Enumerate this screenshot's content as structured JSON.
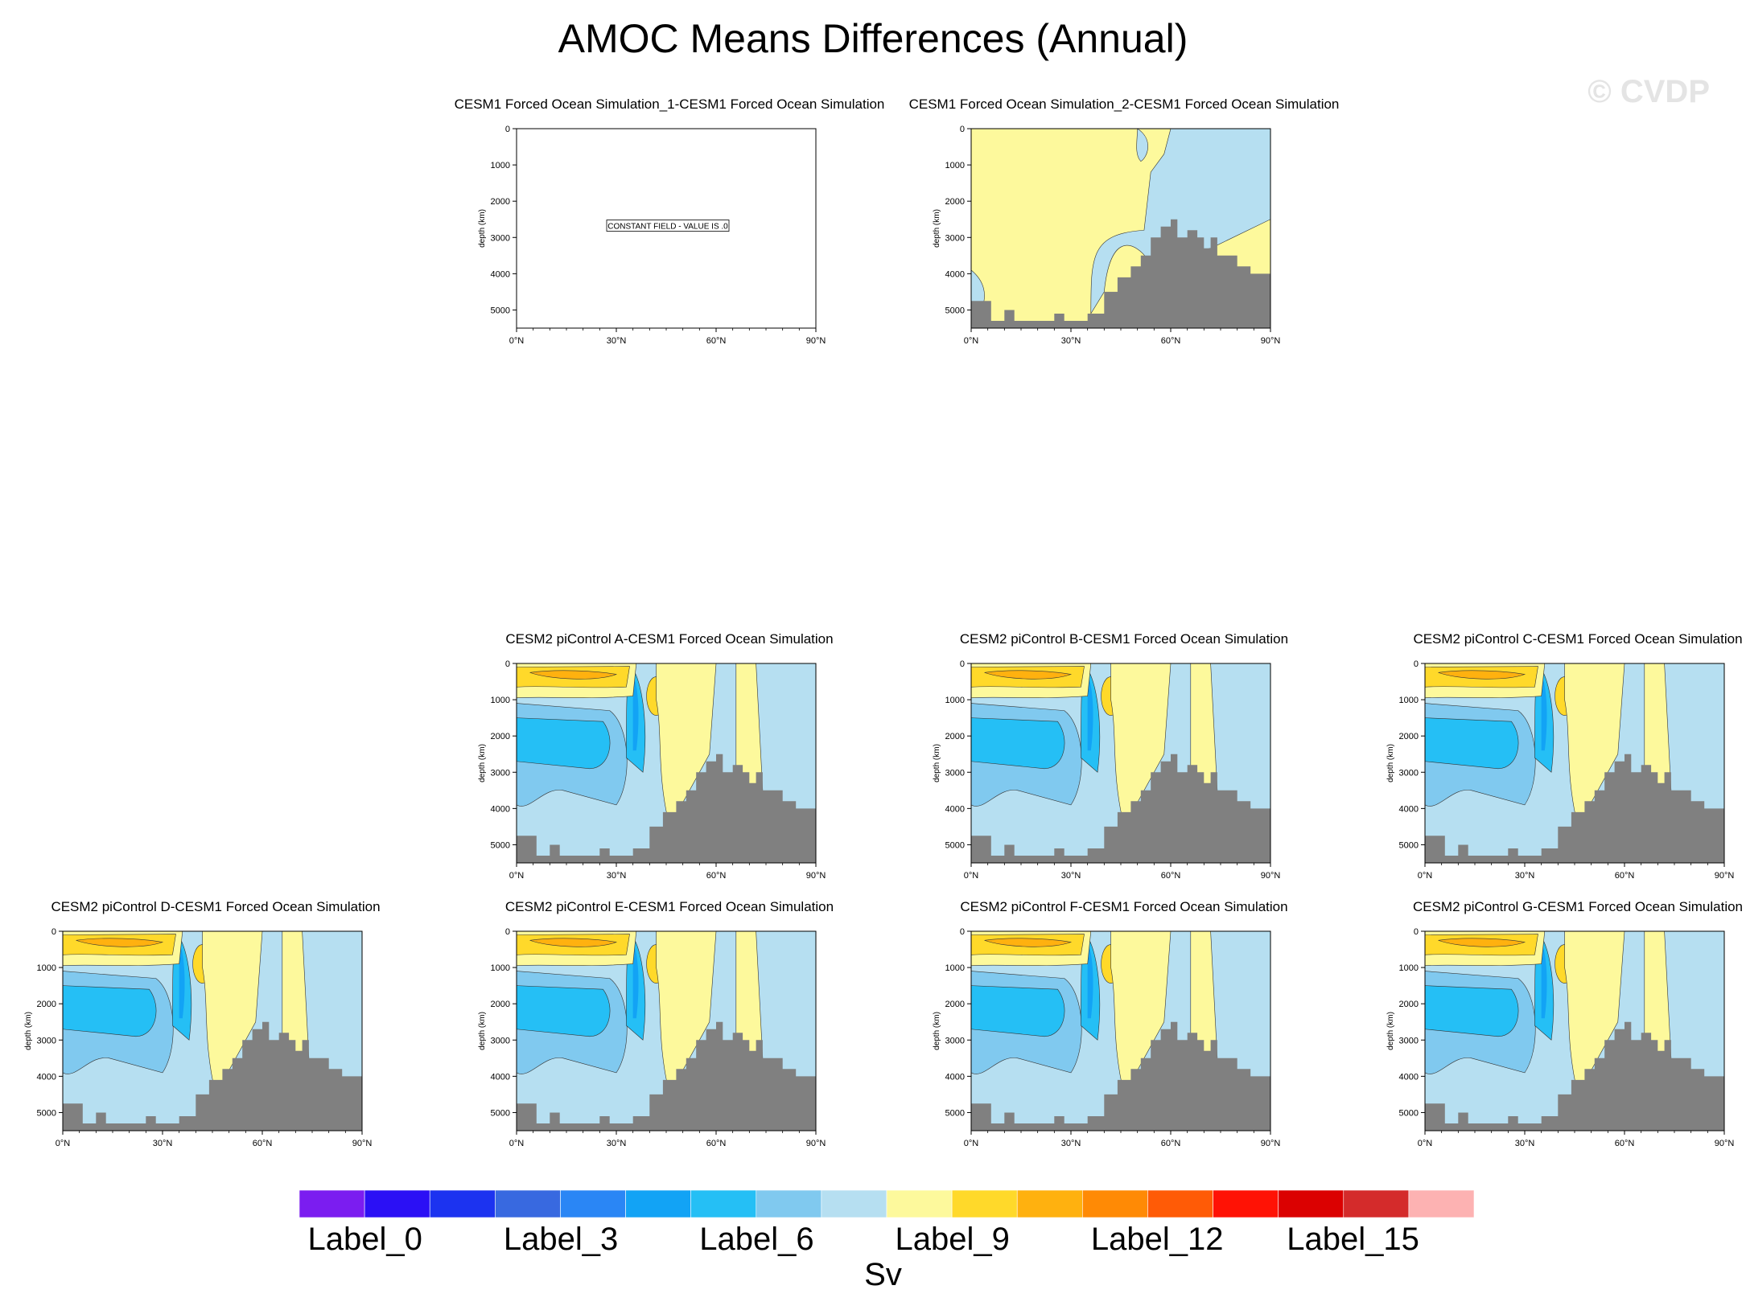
{
  "title": "AMOC Means Differences (Annual)",
  "watermark": "© CVDP",
  "units": "Sv",
  "colors": {
    "levels": [
      "#7b1df0",
      "#2b10f5",
      "#1c33f0",
      "#3869e0",
      "#2a86f5",
      "#12a3f5",
      "#25bff5",
      "#80c9ef",
      "#b6dff1",
      "#fdf99c",
      "#ffd92a",
      "#ffb10f",
      "#ff8a05",
      "#ff5b06",
      "#ff1205",
      "#db0101",
      "#d42b2b",
      "#fdb2b2"
    ],
    "bathymetry": "#808080",
    "frame": "#000000"
  },
  "colorbar": {
    "labels": [
      {
        "text": "Label_0",
        "index": 0
      },
      {
        "text": "Label_3",
        "index": 3
      },
      {
        "text": "Label_6",
        "index": 6
      },
      {
        "text": "Label_9",
        "index": 9
      },
      {
        "text": "Label_12",
        "index": 12
      },
      {
        "text": "Label_15",
        "index": 15
      }
    ]
  },
  "chart_data": [
    {
      "type": "heatmap",
      "panel": "p0",
      "title": "CESM1 Forced Ocean Simulation_1-CESM1 Forced Ocean Simulation",
      "ylabel": "depth (km)",
      "xticks": [
        "0°N",
        "30°N",
        "60°N",
        "90°N"
      ],
      "yticks": [
        "0",
        "1000",
        "2000",
        "3000",
        "4000",
        "5000"
      ],
      "xlim": [
        0,
        90
      ],
      "ylim": [
        5500,
        0
      ],
      "annotation": "CONSTANT FIELD - VALUE IS .0",
      "bathymetry": false
    },
    {
      "type": "heatmap",
      "panel": "p1",
      "title": "CESM1 Forced Ocean Simulation_2-CESM1 Forced Ocean Simulation",
      "ylabel": "depth (km)",
      "xticks": [
        "0°N",
        "30°N",
        "60°N",
        "90°N"
      ],
      "yticks": [
        "0",
        "1000",
        "2000",
        "3000",
        "4000",
        "5000"
      ],
      "xlim": [
        0,
        90
      ],
      "ylim": [
        5500,
        0
      ],
      "pattern": "weak",
      "bathymetry": true
    },
    {
      "type": "heatmap",
      "panel": "pA",
      "title": "CESM2 piControl A-CESM1 Forced Ocean Simulation",
      "ylabel": "depth (km)",
      "xticks": [
        "0°N",
        "30°N",
        "60°N",
        "90°N"
      ],
      "yticks": [
        "0",
        "1000",
        "2000",
        "3000",
        "4000",
        "5000"
      ],
      "xlim": [
        0,
        90
      ],
      "ylim": [
        5500,
        0
      ],
      "pattern": "full",
      "bathymetry": true
    },
    {
      "type": "heatmap",
      "panel": "pB",
      "title": "CESM2 piControl B-CESM1 Forced Ocean Simulation",
      "ylabel": "depth (km)",
      "xticks": [
        "0°N",
        "30°N",
        "60°N",
        "90°N"
      ],
      "yticks": [
        "0",
        "1000",
        "2000",
        "3000",
        "4000",
        "5000"
      ],
      "xlim": [
        0,
        90
      ],
      "ylim": [
        5500,
        0
      ],
      "pattern": "full",
      "bathymetry": true
    },
    {
      "type": "heatmap",
      "panel": "pC",
      "title": "CESM2 piControl C-CESM1 Forced Ocean Simulation",
      "ylabel": "depth (km)",
      "xticks": [
        "0°N",
        "30°N",
        "60°N",
        "90°N"
      ],
      "yticks": [
        "0",
        "1000",
        "2000",
        "3000",
        "4000",
        "5000"
      ],
      "xlim": [
        0,
        90
      ],
      "ylim": [
        5500,
        0
      ],
      "pattern": "full",
      "bathymetry": true
    },
    {
      "type": "heatmap",
      "panel": "pD",
      "title": "CESM2 piControl D-CESM1 Forced Ocean Simulation",
      "ylabel": "depth (km)",
      "xticks": [
        "0°N",
        "30°N",
        "60°N",
        "90°N"
      ],
      "yticks": [
        "0",
        "1000",
        "2000",
        "3000",
        "4000",
        "5000"
      ],
      "xlim": [
        0,
        90
      ],
      "ylim": [
        5500,
        0
      ],
      "pattern": "full",
      "bathymetry": true
    },
    {
      "type": "heatmap",
      "panel": "pE",
      "title": "CESM2 piControl E-CESM1 Forced Ocean Simulation",
      "ylabel": "depth (km)",
      "xticks": [
        "0°N",
        "30°N",
        "60°N",
        "90°N"
      ],
      "yticks": [
        "0",
        "1000",
        "2000",
        "3000",
        "4000",
        "5000"
      ],
      "xlim": [
        0,
        90
      ],
      "ylim": [
        5500,
        0
      ],
      "pattern": "full",
      "bathymetry": true
    },
    {
      "type": "heatmap",
      "panel": "pF",
      "title": "CESM2 piControl F-CESM1 Forced Ocean Simulation",
      "ylabel": "depth (km)",
      "xticks": [
        "0°N",
        "30°N",
        "60°N",
        "90°N"
      ],
      "yticks": [
        "0",
        "1000",
        "2000",
        "3000",
        "4000",
        "5000"
      ],
      "xlim": [
        0,
        90
      ],
      "ylim": [
        5500,
        0
      ],
      "pattern": "full",
      "bathymetry": true
    },
    {
      "type": "heatmap",
      "panel": "pG",
      "title": "CESM2 piControl G-CESM1 Forced Ocean Simulation",
      "ylabel": "depth (km)",
      "xticks": [
        "0°N",
        "30°N",
        "60°N",
        "90°N"
      ],
      "yticks": [
        "0",
        "1000",
        "2000",
        "3000",
        "4000",
        "5000"
      ],
      "xlim": [
        0,
        90
      ],
      "ylim": [
        5500,
        0
      ],
      "pattern": "full",
      "bathymetry": true
    }
  ]
}
